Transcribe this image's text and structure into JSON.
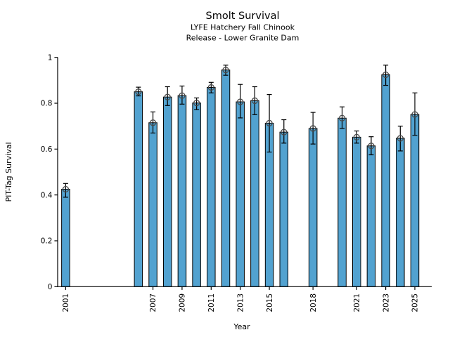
{
  "chart_data": {
    "type": "bar",
    "title": "Smolt Survival",
    "subtitle_line1": "LYFE Hatchery Fall Chinook",
    "subtitle_line2": "Release - Lower Granite Dam",
    "xlabel": "Year",
    "ylabel": "PIT-Tag Survival",
    "ylim": [
      0,
      1
    ],
    "xlim": [
      2000.45,
      2026.16
    ],
    "grid": false,
    "legend": "none",
    "bar_color": "#52a2d0",
    "bar_edge_color": "#000000",
    "error_bar_color": "#000000",
    "marker": "open-circle",
    "marker_edge_color": "#4a4a4a",
    "x_tick_labels": [
      "2001",
      "2007",
      "2009",
      "2011",
      "2013",
      "2015",
      "2018",
      "2021",
      "2023",
      "2025"
    ],
    "x_tick_years": [
      2001,
      2007,
      2009,
      2011,
      2013,
      2015,
      2018,
      2021,
      2023,
      2025
    ],
    "y_tick_labels": [
      "0",
      "0.2",
      "0.4",
      "0.6",
      "0.8",
      "1"
    ],
    "y_tick_values": [
      0,
      0.2,
      0.4,
      0.6,
      0.8,
      1
    ],
    "series": [
      {
        "name": "PIT-Tag Survival",
        "points": [
          {
            "year": 2001,
            "value": 0.425,
            "ci_low": 0.39,
            "ci_high": 0.45
          },
          {
            "year": 2006,
            "value": 0.85,
            "ci_low": 0.832,
            "ci_high": 0.87
          },
          {
            "year": 2007,
            "value": 0.715,
            "ci_low": 0.67,
            "ci_high": 0.762
          },
          {
            "year": 2008,
            "value": 0.827,
            "ci_low": 0.79,
            "ci_high": 0.872
          },
          {
            "year": 2009,
            "value": 0.833,
            "ci_low": 0.796,
            "ci_high": 0.875
          },
          {
            "year": 2010,
            "value": 0.801,
            "ci_low": 0.772,
            "ci_high": 0.823
          },
          {
            "year": 2011,
            "value": 0.869,
            "ci_low": 0.845,
            "ci_high": 0.891
          },
          {
            "year": 2012,
            "value": 0.945,
            "ci_low": 0.922,
            "ci_high": 0.966
          },
          {
            "year": 2013,
            "value": 0.806,
            "ci_low": 0.736,
            "ci_high": 0.882
          },
          {
            "year": 2014,
            "value": 0.811,
            "ci_low": 0.75,
            "ci_high": 0.872
          },
          {
            "year": 2015,
            "value": 0.713,
            "ci_low": 0.587,
            "ci_high": 0.838
          },
          {
            "year": 2016,
            "value": 0.674,
            "ci_low": 0.626,
            "ci_high": 0.728
          },
          {
            "year": 2018,
            "value": 0.69,
            "ci_low": 0.622,
            "ci_high": 0.76
          },
          {
            "year": 2020,
            "value": 0.735,
            "ci_low": 0.69,
            "ci_high": 0.784
          },
          {
            "year": 2021,
            "value": 0.652,
            "ci_low": 0.626,
            "ci_high": 0.679
          },
          {
            "year": 2022,
            "value": 0.614,
            "ci_low": 0.575,
            "ci_high": 0.654
          },
          {
            "year": 2023,
            "value": 0.924,
            "ci_low": 0.878,
            "ci_high": 0.966
          },
          {
            "year": 2024,
            "value": 0.647,
            "ci_low": 0.592,
            "ci_high": 0.7
          },
          {
            "year": 2025,
            "value": 0.751,
            "ci_low": 0.66,
            "ci_high": 0.845
          }
        ]
      }
    ]
  }
}
